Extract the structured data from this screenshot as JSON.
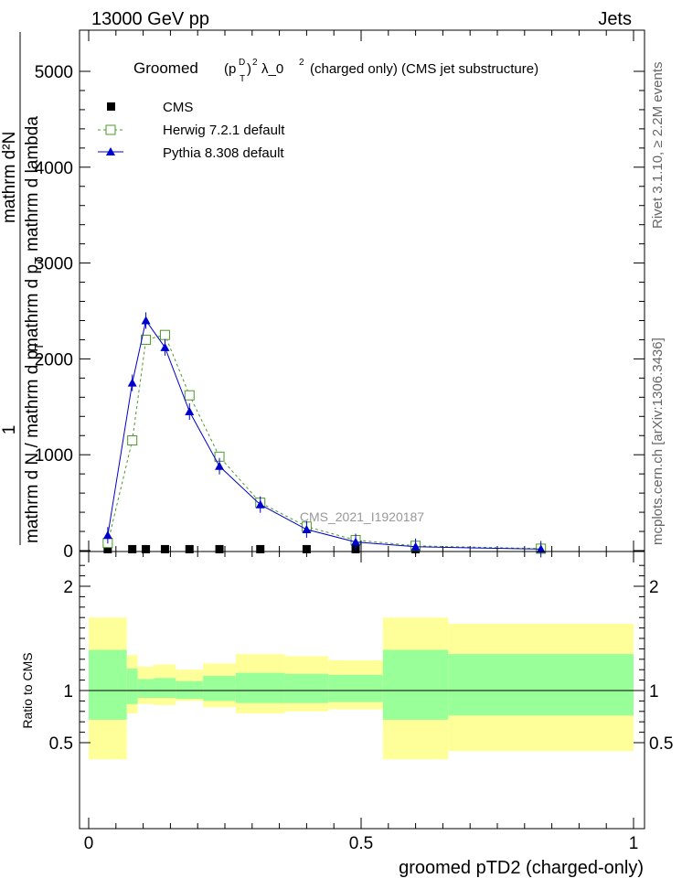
{
  "header": {
    "left": "13000 GeV pp",
    "right": "Jets"
  },
  "side_labels": {
    "rivet": "Rivet 3.1.10, ≥ 2.2M events",
    "mcplots": "mcplots.cern.ch [arXiv:1306.3436]"
  },
  "watermark": "CMS_2021_I1920187",
  "main_title": {
    "prefix": "Groomed",
    "p": "(p",
    "sup_d": "D",
    "sub_t": "T",
    "sup_2": "2",
    "lambda": "λ_0",
    "sup_2b": "2",
    "suffix": "(charged only) (CMS jet substructure)"
  },
  "y_label_main": {
    "line1": "1",
    "line2": "mathrm d²N",
    "line3": "mathrm d p",
    "line3_sub": "T",
    "line3b": "mathrm d lambda",
    "line4": "mathrm d N / mathrm d p",
    "line4_sub": "T"
  },
  "y_label_ratio": "Ratio to CMS",
  "x_label": "groomed pTD2 (charged-only)",
  "legend": [
    {
      "label": "CMS",
      "color": "#000000",
      "marker": "square-filled"
    },
    {
      "label": "Herwig 7.2.1 default",
      "color": "#4a9a2a",
      "marker": "square-open",
      "dash": true
    },
    {
      "label": "Pythia 8.308 default",
      "color": "#0000cc",
      "marker": "triangle-filled",
      "dash": false
    }
  ],
  "chart_data": {
    "type": "line",
    "xlim": [
      0,
      1
    ],
    "ylim": [
      0,
      5400
    ],
    "x_ticks": [
      0,
      0.5,
      1
    ],
    "x_tick_labels": [
      "0",
      "0.5",
      "1"
    ],
    "y_ticks": [
      0,
      1000,
      2000,
      3000,
      4000,
      5000
    ],
    "y_tick_labels": [
      "0",
      "1000",
      "2000",
      "3000",
      "4000",
      "5000"
    ],
    "ratio_ylim": [
      0.34,
      2.3
    ],
    "ratio_ticks": [
      0.5,
      1,
      2
    ],
    "ratio_tick_labels": [
      "0.5",
      "1",
      "2"
    ],
    "bins": [
      0.0,
      0.07,
      0.09,
      0.12,
      0.16,
      0.21,
      0.27,
      0.36,
      0.44,
      0.54,
      0.66,
      1.0
    ],
    "series": [
      {
        "name": "CMS",
        "x": [
          0.035,
          0.08,
          0.105,
          0.14,
          0.185,
          0.24,
          0.315,
          0.4,
          0.49,
          0.6,
          0.83
        ],
        "y": [
          15,
          15,
          15,
          15,
          15,
          15,
          15,
          15,
          15,
          15,
          15
        ]
      },
      {
        "name": "Herwig 7.2.1 default",
        "x": [
          0.035,
          0.08,
          0.105,
          0.14,
          0.185,
          0.24,
          0.315,
          0.4,
          0.49,
          0.6,
          0.83
        ],
        "y": [
          80,
          1150,
          2200,
          2250,
          1620,
          980,
          500,
          250,
          110,
          50,
          20
        ]
      },
      {
        "name": "Pythia 8.308 default",
        "x": [
          0.035,
          0.08,
          0.105,
          0.14,
          0.185,
          0.24,
          0.315,
          0.4,
          0.49,
          0.6,
          0.83
        ],
        "y": [
          160,
          1750,
          2400,
          2120,
          1450,
          880,
          480,
          220,
          90,
          40,
          15
        ]
      }
    ],
    "ratio_bands": {
      "green_lo": [
        0.72,
        0.87,
        0.93,
        0.93,
        0.92,
        0.9,
        0.88,
        0.88,
        0.89,
        0.72,
        0.76
      ],
      "green_hi": [
        1.39,
        1.21,
        1.11,
        1.12,
        1.09,
        1.14,
        1.17,
        1.16,
        1.15,
        1.39,
        1.35
      ],
      "yellow_lo": [
        0.34,
        0.78,
        0.87,
        0.86,
        0.9,
        0.84,
        0.78,
        0.8,
        0.82,
        0.34,
        0.42
      ],
      "yellow_hi": [
        1.7,
        1.34,
        1.23,
        1.25,
        1.2,
        1.26,
        1.35,
        1.33,
        1.29,
        1.7,
        1.64
      ]
    }
  }
}
